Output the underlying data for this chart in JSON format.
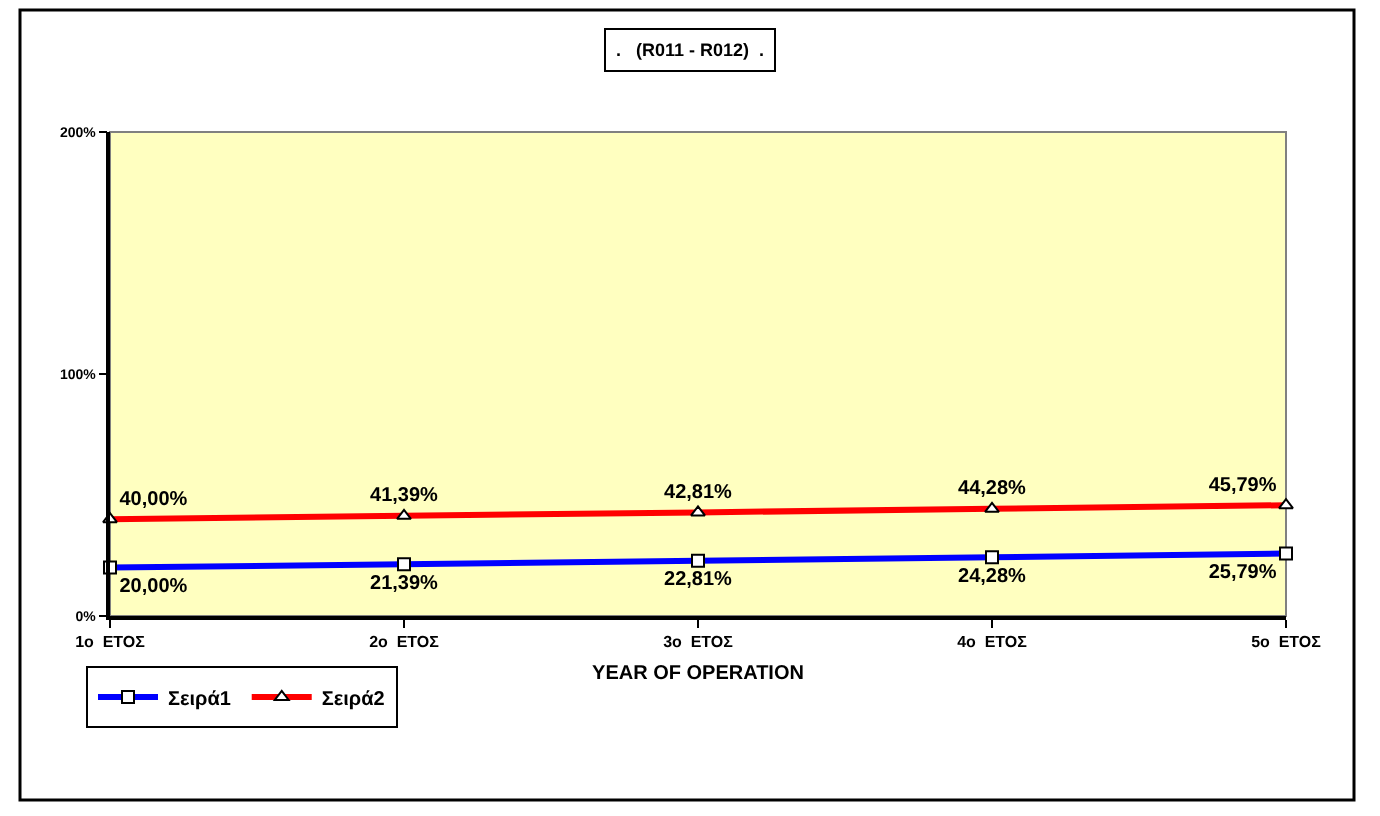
{
  "chart_data": {
    "type": "line",
    "title": ".   (R011 - R012)  .",
    "xlabel": "YEAR OF OPERATION",
    "categories": [
      "1ο  ΕΤΟΣ",
      "2ο  ΕΤΟΣ",
      "3ο  ΕΤΟΣ",
      "4ο  ΕΤΟΣ",
      "5ο  ΕΤΟΣ"
    ],
    "series": [
      {
        "name": "Σειρά1",
        "color": "#0000ff",
        "marker": "square",
        "values": [
          20,
          21.39,
          22.81,
          24.28,
          25.79
        ],
        "value_labels": [
          "20,00%",
          "21,39%",
          "22,81%",
          "24,28%",
          "25,79%"
        ]
      },
      {
        "name": "Σειρά2",
        "color": "#ff0000",
        "marker": "triangle",
        "values": [
          40,
          41.39,
          42.81,
          44.28,
          45.79
        ],
        "value_labels": [
          "40,00%",
          "41,39%",
          "42,81%",
          "44,28%",
          "45,79%"
        ]
      }
    ],
    "ylim": [
      0,
      200
    ],
    "yticks": [
      {
        "value": 0,
        "label": "0%"
      },
      {
        "value": 100,
        "label": "100%"
      },
      {
        "value": 200,
        "label": "200%"
      }
    ],
    "legend": "bottom left",
    "line_style": "solid"
  }
}
